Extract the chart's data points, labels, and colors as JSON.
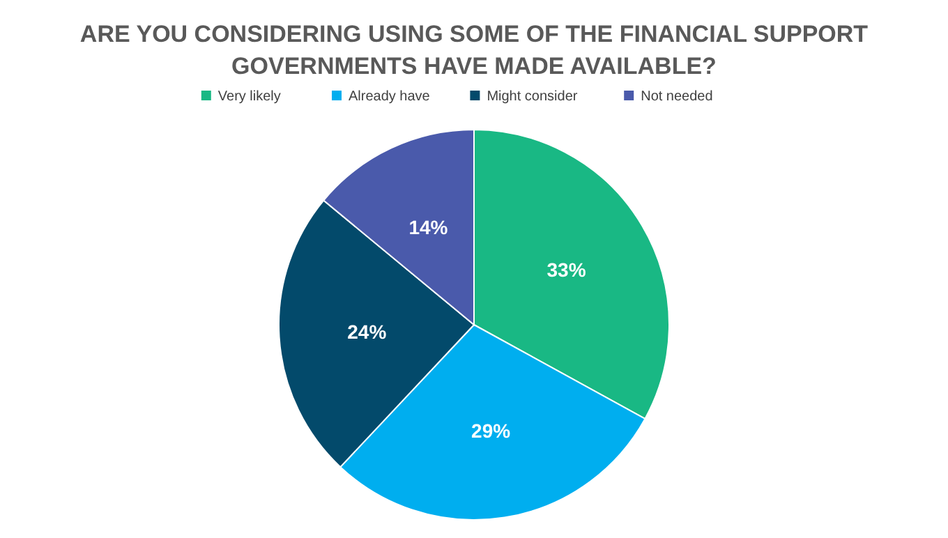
{
  "chart_data": {
    "type": "pie",
    "title": "ARE YOU CONSIDERING USING SOME OF THE FINANCIAL SUPPORT GOVERNMENTS HAVE MADE AVAILABLE?",
    "categories": [
      "Very likely",
      "Already have",
      "Might consider",
      "Not needed"
    ],
    "values": [
      33,
      29,
      24,
      14
    ],
    "value_labels": [
      "33%",
      "29%",
      "24%",
      "14%"
    ],
    "colors": [
      "#19b884",
      "#00aeef",
      "#034a6b",
      "#4a5aab"
    ],
    "legend": "top"
  }
}
